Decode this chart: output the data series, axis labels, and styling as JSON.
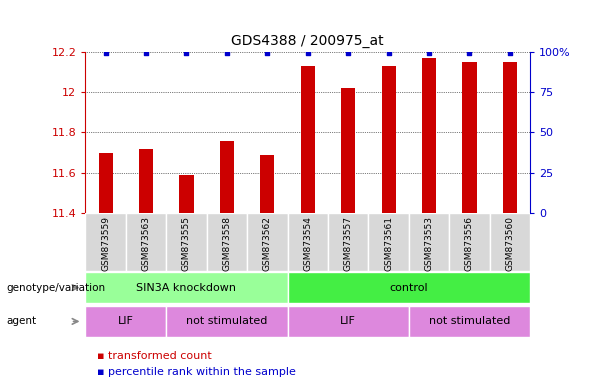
{
  "title": "GDS4388 / 200975_at",
  "samples": [
    "GSM873559",
    "GSM873563",
    "GSM873555",
    "GSM873558",
    "GSM873562",
    "GSM873554",
    "GSM873557",
    "GSM873561",
    "GSM873553",
    "GSM873556",
    "GSM873560"
  ],
  "bar_values": [
    11.7,
    11.72,
    11.59,
    11.76,
    11.69,
    12.13,
    12.02,
    12.13,
    12.17,
    12.15,
    12.15
  ],
  "percentile_values": [
    99,
    99,
    99,
    99,
    99,
    99,
    99,
    99,
    99,
    99,
    99
  ],
  "ylim_left": [
    11.4,
    12.2
  ],
  "ylim_right": [
    0,
    100
  ],
  "bar_color": "#cc0000",
  "dot_color": "#0000cc",
  "background_color": "#ffffff",
  "groups": [
    {
      "label": "SIN3A knockdown",
      "start": 0,
      "end": 5,
      "color": "#99ff99"
    },
    {
      "label": "control",
      "start": 5,
      "end": 11,
      "color": "#44ee44"
    }
  ],
  "agents": [
    {
      "label": "LIF",
      "start": 0,
      "end": 2,
      "color": "#dd88dd"
    },
    {
      "label": "not stimulated",
      "start": 2,
      "end": 5,
      "color": "#dd88dd"
    },
    {
      "label": "LIF",
      "start": 5,
      "end": 8,
      "color": "#dd88dd"
    },
    {
      "label": "not stimulated",
      "start": 8,
      "end": 11,
      "color": "#dd88dd"
    }
  ],
  "left_yticks": [
    11.4,
    11.6,
    11.8,
    12.0,
    12.2
  ],
  "left_ytick_labels": [
    "11.4",
    "11.6",
    "11.8",
    "12",
    "12.2"
  ],
  "right_yticks": [
    0,
    25,
    50,
    75,
    100
  ],
  "right_ytick_labels": [
    "0",
    "25",
    "50",
    "75",
    "100%"
  ]
}
